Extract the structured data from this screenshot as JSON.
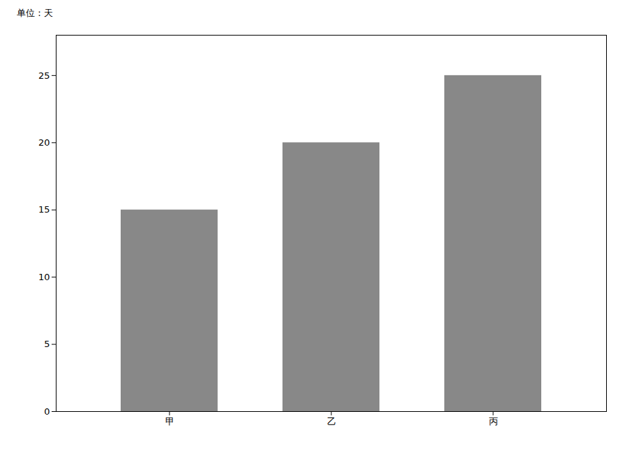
{
  "chart_data": {
    "type": "bar",
    "categories": [
      "甲",
      "乙",
      "丙"
    ],
    "values": [
      15,
      20,
      25
    ],
    "color": "#888888",
    "ylabel": "单位：天",
    "ylim": [
      0,
      28
    ],
    "yticks": [
      0,
      5,
      10,
      15,
      20,
      25
    ],
    "grid": false
  }
}
